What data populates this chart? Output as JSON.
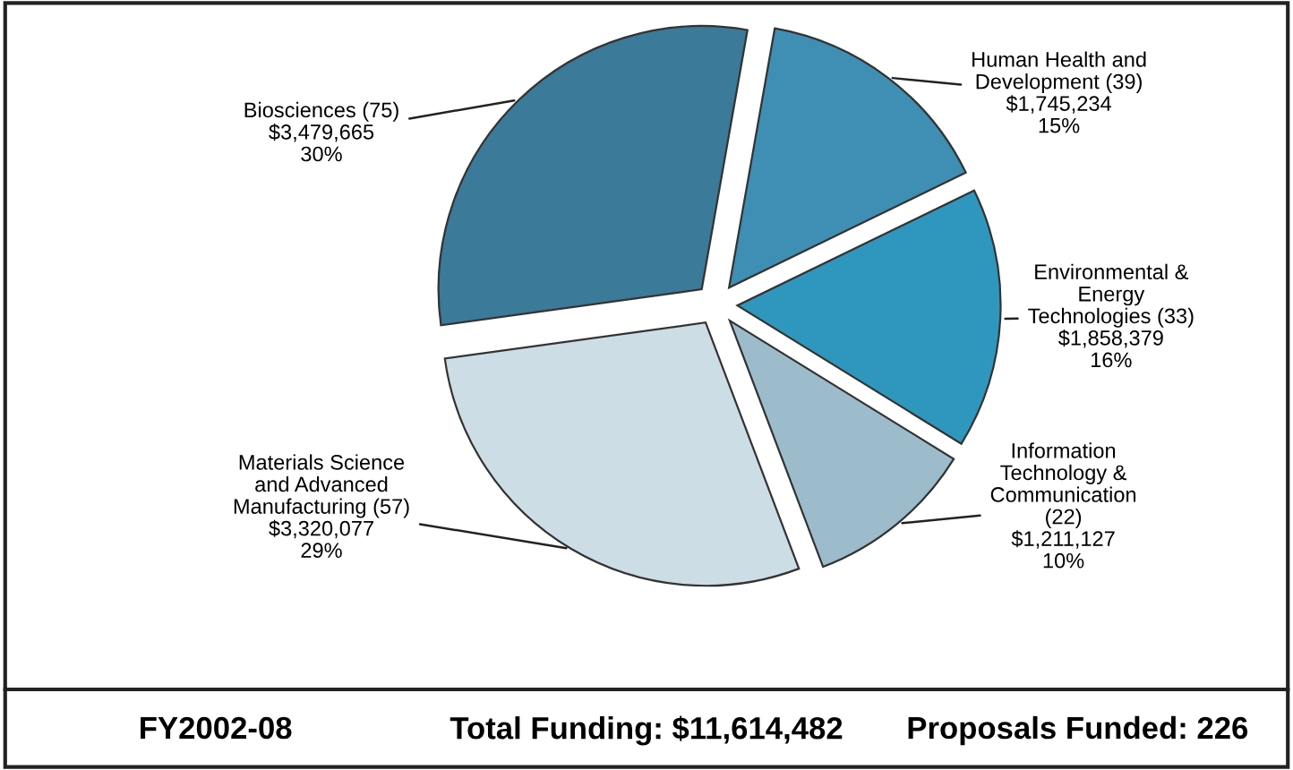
{
  "chart_data": {
    "type": "pie",
    "categories": [
      "Biosciences (75)",
      "Materials Science\nand Advanced\nManufacturing (57)",
      "Information\nTechnology &\nCommunication\n(22)",
      "Environmental &\nEnergy\nTechnologies (33)",
      "Human Health and\nDevelopment (39)"
    ],
    "values": [
      3479665,
      3320077,
      1211127,
      1858379,
      1745234
    ],
    "value_labels": [
      "$3,479,665\n30%",
      "$3,320,077\n29%",
      "$1,211,127\n10%",
      "$1,858,379\n16%",
      "$1,745,234\n15%"
    ],
    "colors": [
      "#3b7a98",
      "#cddde6",
      "#9dbccb",
      "#2f97bd",
      "#3e8fb3"
    ],
    "annotations": [
      "FY2002-08",
      "Total Funding: $11,614,482",
      "Proposals Funded: 226"
    ]
  }
}
